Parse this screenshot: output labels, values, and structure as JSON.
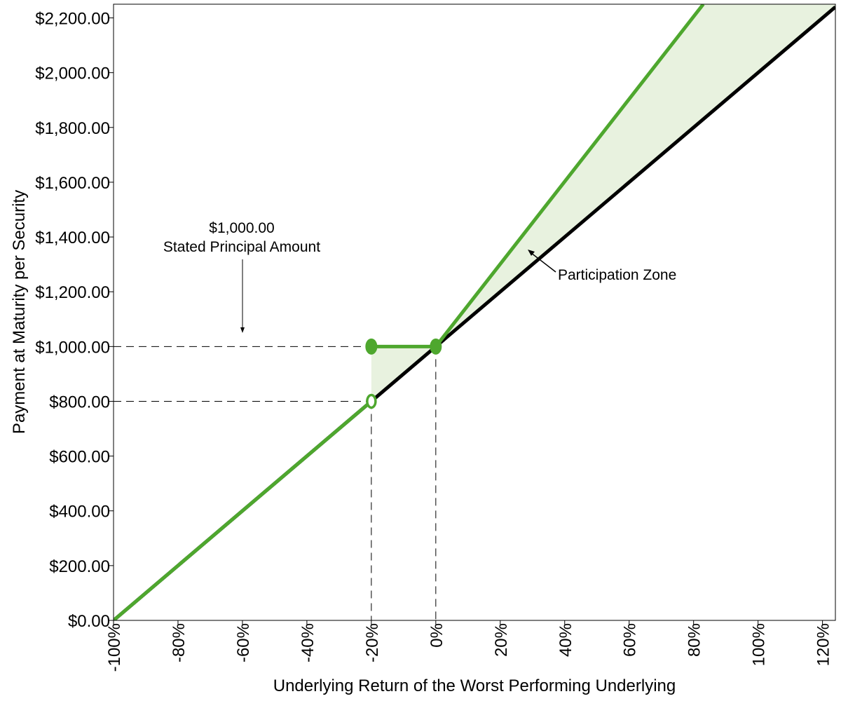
{
  "chart_data": {
    "type": "line",
    "xlabel": "Underlying Return of the Worst Performing Underlying",
    "ylabel": "Payment at Maturity per Security",
    "xlim": [
      -100,
      124
    ],
    "ylim": [
      0,
      2250
    ],
    "x_ticks": [
      -100,
      -80,
      -60,
      -40,
      -20,
      0,
      20,
      40,
      60,
      80,
      100,
      120
    ],
    "x_tick_labels": [
      "-100%",
      "-80%",
      "-60%",
      "-40%",
      "-20%",
      "0%",
      "20%",
      "40%",
      "60%",
      "80%",
      "100%",
      "120%"
    ],
    "y_ticks": [
      0,
      200,
      400,
      600,
      800,
      1000,
      1200,
      1400,
      1600,
      1800,
      2000,
      2200
    ],
    "y_tick_labels": [
      "$0.00",
      "$200.00",
      "$400.00",
      "$600.00",
      "$800.00",
      "$1,000.00",
      "$1,200.00",
      "$1,400.00",
      "$1,600.00",
      "$1,800.00",
      "$2,000.00",
      "$2,200.00"
    ],
    "grid": false,
    "colors": {
      "security": "#4ea72e",
      "underlying": "#000000",
      "zone_fill": "#e8f2df"
    },
    "series": [
      {
        "color": "#000000",
        "points": [
          [
            -100,
            0
          ],
          [
            124,
            2240
          ]
        ]
      },
      {
        "color": "#4ea72e",
        "points": [
          [
            -100,
            0
          ],
          [
            -20,
            800
          ]
        ]
      },
      {
        "color": "#4ea72e",
        "points": [
          [
            -20,
            1000
          ],
          [
            0,
            1000
          ]
        ]
      },
      {
        "color": "#4ea72e",
        "points": [
          [
            0,
            1000
          ],
          [
            83,
            2250
          ]
        ]
      }
    ],
    "markers": [
      {
        "x": -20,
        "y": 1000,
        "filled": true
      },
      {
        "x": 0,
        "y": 1000,
        "filled": true
      },
      {
        "x": -20,
        "y": 800,
        "filled": false
      }
    ],
    "reference_lines": [
      {
        "from": [
          -100,
          1000
        ],
        "to": [
          -20,
          1000
        ]
      },
      {
        "from": [
          -100,
          800
        ],
        "to": [
          -20,
          800
        ]
      },
      {
        "from": [
          -20,
          800
        ],
        "to": [
          -20,
          0
        ]
      },
      {
        "from": [
          0,
          1000
        ],
        "to": [
          0,
          0
        ]
      }
    ],
    "annotations": {
      "principal_line1": "$1,000.00",
      "principal_line2": "Stated Principal Amount",
      "participation": "Participation Zone"
    }
  }
}
